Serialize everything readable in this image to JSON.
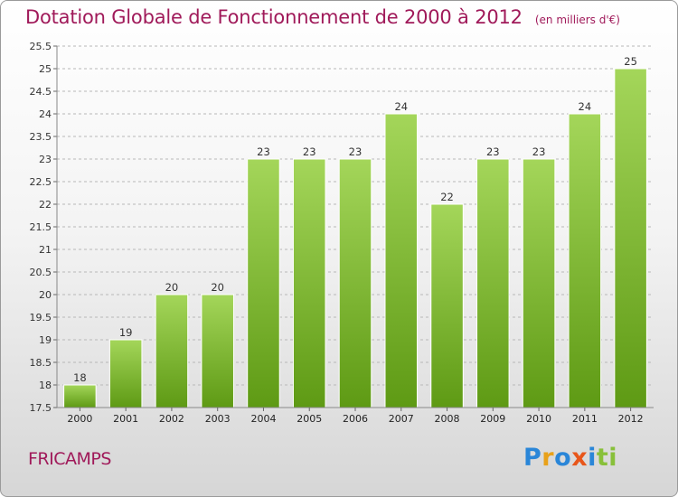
{
  "title": "Dotation Globale de Fonctionnement de 2000 à 2012",
  "unit_label": "(en milliers d'€)",
  "commune": "FRICAMPS",
  "logo": {
    "text": "Proxiti",
    "letter_colors": [
      "#2a86d8",
      "#e8a11a",
      "#2a86d8",
      "#e8561a",
      "#2a86d8",
      "#88c03a",
      "#88c03a"
    ]
  },
  "colors": {
    "bar_light": "#a4d65a",
    "bar_dark": "#5e9a14",
    "grid": "#b8b8b8",
    "title": "#a01a5a"
  },
  "chart_data": {
    "type": "bar",
    "categories": [
      "2000",
      "2001",
      "2002",
      "2003",
      "2004",
      "2005",
      "2006",
      "2007",
      "2008",
      "2009",
      "2010",
      "2011",
      "2012"
    ],
    "values": [
      18,
      19,
      20,
      20,
      23,
      23,
      23,
      24,
      22,
      23,
      23,
      24,
      25
    ],
    "data_labels": [
      "18",
      "19",
      "20",
      "20",
      "23",
      "23",
      "23",
      "24",
      "22",
      "23",
      "23",
      "24",
      "25"
    ],
    "ylim": [
      17.5,
      25.5
    ],
    "yticks": [
      17.5,
      18,
      18.5,
      19,
      19.5,
      20,
      20.5,
      21,
      21.5,
      22,
      22.5,
      23,
      23.5,
      24,
      24.5,
      25,
      25.5
    ],
    "ytick_labels": [
      "17.5",
      "18",
      "18.5",
      "19",
      "19.5",
      "20",
      "20.5",
      "21",
      "21.5",
      "22",
      "22.5",
      "23",
      "23.5",
      "24",
      "24.5",
      "25",
      "25.5"
    ],
    "grid": true,
    "grid_style": "dashed",
    "legend": "none"
  }
}
